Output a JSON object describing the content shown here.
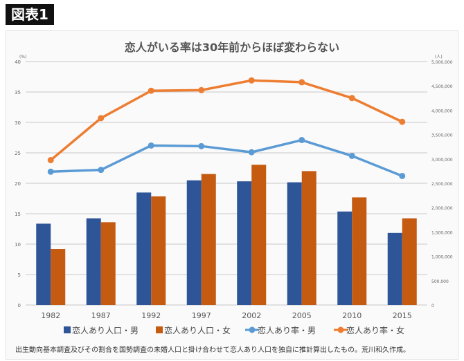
{
  "figure_label": "図表1",
  "note": "出生動向基本調査及びその割合を国勢調査の未婚人口と掛け合わせて恋人あり人口を独自に推計算出したもの。荒川和久作成。",
  "chart_data": {
    "type": "bar+line",
    "title": "恋人がいる率は30年前からほぼ変わらない",
    "categories": [
      "1982",
      "1987",
      "1992",
      "1997",
      "2002",
      "2005",
      "2010",
      "2015"
    ],
    "left_axis": {
      "unit": "(%)",
      "ylim": [
        0,
        40
      ],
      "ticks": [
        "0",
        "5",
        "10",
        "15",
        "20",
        "25",
        "30",
        "35",
        "40"
      ]
    },
    "right_axis": {
      "unit": "(人)",
      "ylim": [
        0,
        5000000
      ],
      "ticks": [
        "0",
        "500,000",
        "1,000,000",
        "1,500,000",
        "2,000,000",
        "2,500,000",
        "3,000,000",
        "3,500,000",
        "4,000,000",
        "4,500,000",
        "5,000,000"
      ]
    },
    "grid": true,
    "legend_position": "bottom",
    "series": [
      {
        "name": "恋人あり人口・男",
        "type": "bar",
        "axis": "right",
        "color": "#2e5597",
        "values": [
          1670000,
          1780000,
          2310000,
          2560000,
          2540000,
          2520000,
          1920000,
          1480000
        ]
      },
      {
        "name": "恋人あり人口・女",
        "type": "bar",
        "axis": "right",
        "color": "#c55a11",
        "values": [
          1150000,
          1700000,
          2230000,
          2690000,
          2880000,
          2750000,
          2210000,
          1780000
        ]
      },
      {
        "name": "恋人あり率・男",
        "type": "line",
        "axis": "left",
        "color": "#5b9bd5",
        "values": [
          21.9,
          22.2,
          26.2,
          26.1,
          25.1,
          27.1,
          24.5,
          21.2
        ]
      },
      {
        "name": "恋人あり率・女",
        "type": "line",
        "axis": "left",
        "color": "#ed7d31",
        "values": [
          23.8,
          30.7,
          35.2,
          35.3,
          36.9,
          36.6,
          34.0,
          30.1
        ]
      }
    ]
  }
}
